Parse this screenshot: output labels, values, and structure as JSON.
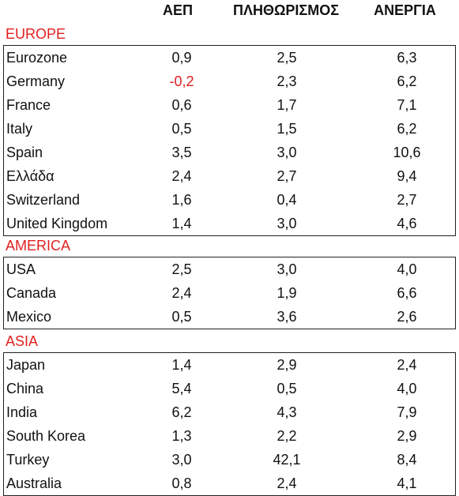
{
  "headers": {
    "gdp": "ΑΕΠ",
    "population": "ΠΛΗΘΩΡΙΣΜΟΣ",
    "unemployment": "ΑΝΕΡΓΙΑ"
  },
  "colors": {
    "region_label": "#e02020",
    "negative_value": "#e02020",
    "text": "#111111"
  },
  "regions": [
    {
      "label": "EUROPE",
      "rows": [
        {
          "name": "Eurozone",
          "gdp": "0,9",
          "population": "2,5",
          "unemployment": "6,3"
        },
        {
          "name": "Germany",
          "gdp": "-0,2",
          "population": "2,3",
          "unemployment": "6,2"
        },
        {
          "name": "France",
          "gdp": "0,6",
          "population": "1,7",
          "unemployment": "7,1"
        },
        {
          "name": "Italy",
          "gdp": "0,5",
          "population": "1,5",
          "unemployment": "6,2"
        },
        {
          "name": "Spain",
          "gdp": "3,5",
          "population": "3,0",
          "unemployment": "10,6"
        },
        {
          "name": "Ελλάδα",
          "gdp": "2,4",
          "population": "2,7",
          "unemployment": "9,4"
        },
        {
          "name": "Switzerland",
          "gdp": "1,6",
          "population": "0,4",
          "unemployment": "2,7"
        },
        {
          "name": "United Kingdom",
          "gdp": "1,4",
          "population": "3,0",
          "unemployment": "4,6"
        }
      ]
    },
    {
      "label": "AMERICA",
      "rows": [
        {
          "name": "USA",
          "gdp": "2,5",
          "population": "3,0",
          "unemployment": "4,0"
        },
        {
          "name": "Canada",
          "gdp": "2,4",
          "population": "1,9",
          "unemployment": "6,6"
        },
        {
          "name": "Mexico",
          "gdp": "0,5",
          "population": "3,6",
          "unemployment": "2,6"
        }
      ]
    },
    {
      "label": "ASIA",
      "rows": [
        {
          "name": "Japan",
          "gdp": "1,4",
          "population": "2,9",
          "unemployment": "2,4"
        },
        {
          "name": "China",
          "gdp": "5,4",
          "population": "0,5",
          "unemployment": "4,0"
        },
        {
          "name": "India",
          "gdp": "6,2",
          "population": "4,3",
          "unemployment": "7,9"
        },
        {
          "name": "South Korea",
          "gdp": "1,3",
          "population": "2,2",
          "unemployment": "2,9"
        },
        {
          "name": "Turkey",
          "gdp": "3,0",
          "population": "42,1",
          "unemployment": "8,4"
        },
        {
          "name": "Australia",
          "gdp": "0,8",
          "population": "2,4",
          "unemployment": "4,1"
        }
      ]
    }
  ]
}
